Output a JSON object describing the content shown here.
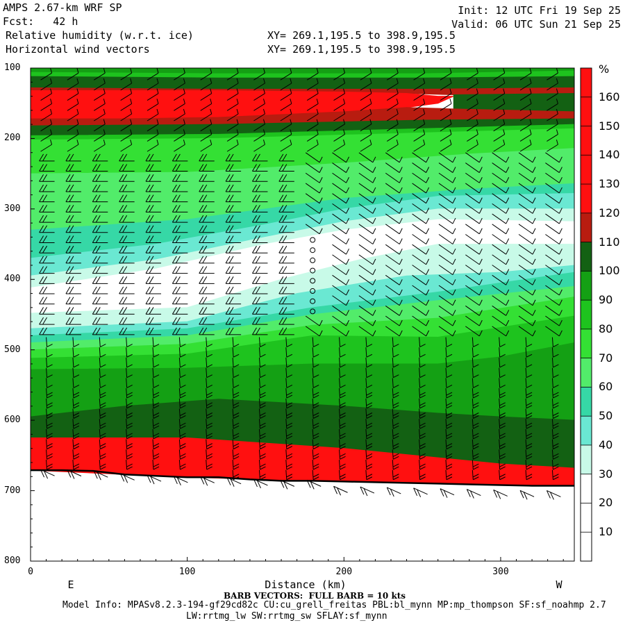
{
  "header": {
    "model": "AMPS 2.67-km WRF SP",
    "forecast": "Fcst:   42 h",
    "field1": "Relative humidity (w.r.t. ice)",
    "field2": "Horizontal wind vectors",
    "init": "Init: 12 UTC Fri 19 Sep 25",
    "valid": "Valid: 06 UTC Sun 21 Sep 25",
    "xy1": "XY= 269.1,195.5 to 398.9,195.5",
    "xy2": "XY= 269.1,195.5 to 398.9,195.5"
  },
  "footer": {
    "barb_note": "BARB VECTORS:  FULL BARB = 10 kts",
    "model_info": "Model Info: MPASv8.2.3-194-gf29cd82c CU:cu_grell_freitas PBL:bl_mynn MP:mp_thompson SF:sf_noahmp 2.7",
    "model_info2": "LW:rrtmg_lw SW:rrtmg_sw SFLAY:sf_mynn"
  },
  "chart_data": {
    "type": "heatmap",
    "title": "Relative humidity (w.r.t. ice)",
    "xlabel": "Distance (km)",
    "ylabel": "",
    "x_ticks": [
      0,
      100,
      200,
      300
    ],
    "y_ticks": [
      100,
      200,
      300,
      400,
      500,
      600,
      700,
      800
    ],
    "xlim": [
      0,
      347
    ],
    "ylim": [
      800,
      100
    ],
    "left_end_label": "E",
    "right_end_label": "W",
    "colorbar": {
      "unit": "%",
      "levels": [
        10,
        20,
        30,
        40,
        50,
        60,
        70,
        80,
        90,
        100,
        110,
        120,
        130,
        140,
        150,
        160
      ],
      "colors": [
        "#ffffff",
        "#ffffff",
        "#ffffff",
        "#c8fae8",
        "#6ae8d2",
        "#36d8a6",
        "#52ec6a",
        "#34e034",
        "#1ec31e",
        "#14a014",
        "#136113",
        "#b81c10",
        "#ff1010",
        "#ff1010",
        "#ff1010",
        "#ff1010",
        "#ff1010"
      ]
    },
    "terrain_pressure": [
      [
        0,
        671
      ],
      [
        20,
        671
      ],
      [
        40,
        672
      ],
      [
        60,
        677
      ],
      [
        80,
        679
      ],
      [
        100,
        681
      ],
      [
        120,
        681
      ],
      [
        140,
        684
      ],
      [
        160,
        686
      ],
      [
        180,
        686
      ],
      [
        200,
        687
      ],
      [
        220,
        688
      ],
      [
        240,
        689
      ],
      [
        260,
        690
      ],
      [
        280,
        691
      ],
      [
        300,
        692
      ],
      [
        320,
        693
      ],
      [
        347,
        693
      ]
    ],
    "bands": [
      {
        "level": "100",
        "top": [
          [
            0,
            100
          ],
          [
            347,
            100
          ]
        ],
        "bottom": [
          [
            0,
            106
          ],
          [
            120,
            108
          ],
          [
            250,
            108
          ],
          [
            347,
            104
          ]
        ]
      },
      {
        "level": "90",
        "top": [
          [
            0,
            106
          ],
          [
            120,
            108
          ],
          [
            250,
            108
          ],
          [
            347,
            104
          ]
        ],
        "bottom": [
          [
            0,
            112
          ],
          [
            120,
            114
          ],
          [
            250,
            114
          ],
          [
            347,
            112
          ]
        ]
      },
      {
        "level": "110",
        "top": [
          [
            0,
            112
          ],
          [
            120,
            114
          ],
          [
            250,
            114
          ],
          [
            347,
            112
          ]
        ],
        "bottom": [
          [
            0,
            128
          ],
          [
            120,
            130
          ],
          [
            250,
            130
          ],
          [
            347,
            128
          ]
        ]
      },
      {
        "level": "120",
        "top": [
          [
            0,
            128
          ],
          [
            120,
            130
          ],
          [
            250,
            130
          ],
          [
            347,
            128
          ]
        ],
        "bottom": [
          [
            0,
            132
          ],
          [
            120,
            132
          ],
          [
            200,
            134
          ],
          [
            240,
            136
          ],
          [
            270,
            138
          ],
          [
            347,
            138
          ]
        ]
      },
      {
        "level": "160",
        "top": [
          [
            0,
            132
          ],
          [
            120,
            132
          ],
          [
            200,
            134
          ],
          [
            240,
            136
          ],
          [
            260,
            140
          ],
          [
            270,
            140
          ]
        ],
        "bottom": [
          [
            0,
            172
          ],
          [
            60,
            172
          ],
          [
            120,
            170
          ],
          [
            200,
            162
          ],
          [
            240,
            156
          ],
          [
            260,
            150
          ],
          [
            270,
            140
          ]
        ]
      },
      {
        "level": "110",
        "top": [
          [
            270,
            138
          ],
          [
            347,
            136
          ]
        ],
        "bottom": [
          [
            270,
            158
          ],
          [
            347,
            162
          ]
        ]
      },
      {
        "level": "120",
        "top": [
          [
            0,
            172
          ],
          [
            60,
            172
          ],
          [
            120,
            170
          ],
          [
            200,
            162
          ],
          [
            240,
            156
          ],
          [
            270,
            158
          ],
          [
            347,
            162
          ]
        ],
        "bottom": [
          [
            0,
            182
          ],
          [
            120,
            180
          ],
          [
            250,
            174
          ],
          [
            347,
            172
          ]
        ]
      },
      {
        "level": "110",
        "top": [
          [
            0,
            182
          ],
          [
            120,
            180
          ],
          [
            250,
            174
          ],
          [
            347,
            172
          ]
        ],
        "bottom": [
          [
            0,
            196
          ],
          [
            120,
            194
          ],
          [
            250,
            186
          ],
          [
            347,
            180
          ]
        ]
      },
      {
        "level": "90",
        "top": [
          [
            0,
            196
          ],
          [
            120,
            194
          ],
          [
            250,
            186
          ],
          [
            347,
            180
          ]
        ],
        "bottom": [
          [
            0,
            202
          ],
          [
            120,
            200
          ],
          [
            250,
            192
          ],
          [
            347,
            186
          ]
        ]
      },
      {
        "level": "80",
        "top": [
          [
            0,
            202
          ],
          [
            120,
            200
          ],
          [
            250,
            192
          ],
          [
            347,
            186
          ]
        ],
        "bottom": [
          [
            0,
            250
          ],
          [
            100,
            248
          ],
          [
            200,
            235
          ],
          [
            280,
            222
          ],
          [
            347,
            214
          ]
        ]
      },
      {
        "level": "70",
        "top": [
          [
            0,
            250
          ],
          [
            100,
            248
          ],
          [
            200,
            235
          ],
          [
            280,
            222
          ],
          [
            347,
            214
          ]
        ],
        "bottom": [
          [
            0,
            330
          ],
          [
            100,
            315
          ],
          [
            150,
            300
          ],
          [
            200,
            285
          ],
          [
            280,
            272
          ],
          [
            347,
            264
          ]
        ]
      },
      {
        "level": "60",
        "top": [
          [
            0,
            330
          ],
          [
            100,
            315
          ],
          [
            150,
            300
          ],
          [
            200,
            285
          ],
          [
            280,
            272
          ],
          [
            347,
            264
          ]
        ],
        "bottom": [
          [
            0,
            370
          ],
          [
            80,
            350
          ],
          [
            150,
            322
          ],
          [
            200,
            300
          ],
          [
            260,
            282
          ],
          [
            347,
            278
          ]
        ]
      },
      {
        "level": "50",
        "top": [
          [
            0,
            370
          ],
          [
            80,
            350
          ],
          [
            150,
            322
          ],
          [
            200,
            300
          ],
          [
            260,
            282
          ],
          [
            347,
            278
          ]
        ],
        "bottom": [
          [
            0,
            395
          ],
          [
            80,
            372
          ],
          [
            150,
            340
          ],
          [
            200,
            318
          ],
          [
            260,
            300
          ],
          [
            347,
            300
          ]
        ]
      },
      {
        "level": "40",
        "top": [
          [
            0,
            395
          ],
          [
            80,
            372
          ],
          [
            150,
            340
          ],
          [
            200,
            318
          ],
          [
            260,
            300
          ],
          [
            347,
            300
          ]
        ],
        "bottom": [
          [
            0,
            412
          ],
          [
            80,
            385
          ],
          [
            150,
            350
          ],
          [
            200,
            330
          ],
          [
            260,
            315
          ],
          [
            347,
            318
          ]
        ]
      },
      {
        "level": "20",
        "top": [
          [
            0,
            412
          ],
          [
            80,
            385
          ],
          [
            150,
            350
          ],
          [
            200,
            330
          ],
          [
            260,
            315
          ],
          [
            347,
            318
          ]
        ],
        "bottom": [
          [
            0,
            448
          ],
          [
            100,
            440
          ],
          [
            160,
            400
          ],
          [
            210,
            372
          ],
          [
            260,
            350
          ],
          [
            347,
            350
          ]
        ]
      },
      {
        "level": "40",
        "top": [
          [
            0,
            448
          ],
          [
            100,
            440
          ],
          [
            160,
            400
          ],
          [
            210,
            372
          ],
          [
            260,
            350
          ],
          [
            347,
            350
          ]
        ],
        "bottom": [
          [
            0,
            470
          ],
          [
            100,
            460
          ],
          [
            170,
            420
          ],
          [
            240,
            395
          ],
          [
            300,
            390
          ],
          [
            347,
            380
          ]
        ]
      },
      {
        "level": "50",
        "top": [
          [
            0,
            470
          ],
          [
            100,
            460
          ],
          [
            170,
            420
          ],
          [
            240,
            395
          ],
          [
            300,
            390
          ],
          [
            347,
            380
          ]
        ],
        "bottom": [
          [
            0,
            480
          ],
          [
            100,
            470
          ],
          [
            180,
            440
          ],
          [
            260,
            418
          ],
          [
            300,
            405
          ],
          [
            347,
            390
          ]
        ]
      },
      {
        "level": "60",
        "top": [
          [
            0,
            480
          ],
          [
            100,
            470
          ],
          [
            180,
            440
          ],
          [
            260,
            418
          ],
          [
            300,
            405
          ],
          [
            347,
            390
          ]
        ],
        "bottom": [
          [
            0,
            490
          ],
          [
            100,
            480
          ],
          [
            180,
            450
          ],
          [
            260,
            430
          ],
          [
            347,
            410
          ]
        ]
      },
      {
        "level": "70",
        "top": [
          [
            0,
            490
          ],
          [
            100,
            480
          ],
          [
            180,
            450
          ],
          [
            260,
            430
          ],
          [
            347,
            410
          ]
        ],
        "bottom": [
          [
            0,
            500
          ],
          [
            100,
            492
          ],
          [
            180,
            465
          ],
          [
            260,
            455
          ],
          [
            347,
            425
          ]
        ]
      },
      {
        "level": "80",
        "top": [
          [
            0,
            500
          ],
          [
            100,
            492
          ],
          [
            180,
            465
          ],
          [
            260,
            455
          ],
          [
            347,
            425
          ]
        ],
        "bottom": [
          [
            0,
            512
          ],
          [
            100,
            506
          ],
          [
            180,
            480
          ],
          [
            260,
            482
          ],
          [
            347,
            452
          ]
        ]
      },
      {
        "level": "90",
        "top": [
          [
            0,
            512
          ],
          [
            100,
            506
          ],
          [
            180,
            480
          ],
          [
            260,
            482
          ],
          [
            347,
            452
          ]
        ],
        "bottom": [
          [
            0,
            528
          ],
          [
            100,
            526
          ],
          [
            180,
            520
          ],
          [
            260,
            520
          ],
          [
            300,
            510
          ],
          [
            347,
            490
          ]
        ]
      },
      {
        "level": "100",
        "top": [
          [
            0,
            528
          ],
          [
            100,
            526
          ],
          [
            180,
            520
          ],
          [
            260,
            520
          ],
          [
            300,
            510
          ],
          [
            347,
            490
          ]
        ],
        "bottom": [
          [
            0,
            595
          ],
          [
            60,
            580
          ],
          [
            120,
            570
          ],
          [
            160,
            575
          ],
          [
            200,
            580
          ],
          [
            260,
            590
          ],
          [
            300,
            595
          ],
          [
            347,
            600
          ]
        ]
      },
      {
        "level": "110",
        "top": [
          [
            0,
            595
          ],
          [
            60,
            580
          ],
          [
            120,
            570
          ],
          [
            160,
            575
          ],
          [
            200,
            580
          ],
          [
            260,
            590
          ],
          [
            300,
            595
          ],
          [
            347,
            600
          ]
        ],
        "bottom": [
          [
            0,
            625
          ],
          [
            100,
            625
          ],
          [
            200,
            640
          ],
          [
            300,
            662
          ],
          [
            347,
            668
          ]
        ]
      },
      {
        "level": "160",
        "top": [
          [
            0,
            625
          ],
          [
            100,
            625
          ],
          [
            200,
            640
          ],
          [
            300,
            662
          ],
          [
            347,
            668
          ]
        ],
        "bottom": [
          [
            0,
            671
          ],
          [
            100,
            681
          ],
          [
            200,
            687
          ],
          [
            347,
            693
          ]
        ]
      }
    ],
    "wind_columns_km": [
      10,
      27,
      44,
      61,
      78,
      95,
      112,
      129,
      146,
      163,
      180,
      197,
      214,
      231,
      248,
      265,
      282,
      299,
      316,
      333
    ]
  }
}
